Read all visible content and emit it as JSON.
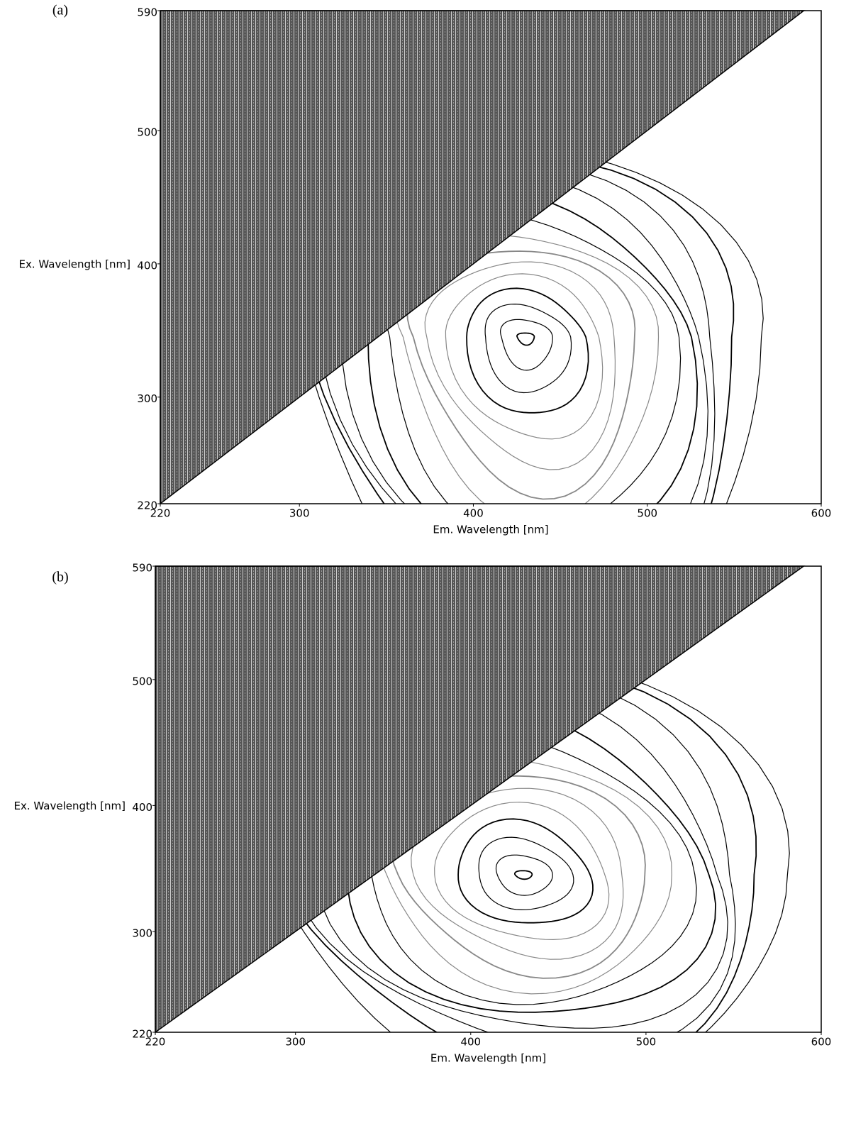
{
  "chart_data": [
    {
      "type": "contour",
      "panel_label": "(a)",
      "xlabel": "Em. Wavelength [nm]",
      "ylabel": "Ex. Wavelength [nm]",
      "xlim": [
        220,
        600
      ],
      "ylim": [
        220,
        590
      ],
      "xticks": [
        220,
        300,
        400,
        500,
        600
      ],
      "yticks": [
        220,
        300,
        400,
        500,
        590
      ]
    },
    {
      "type": "contour",
      "panel_label": "(b)",
      "xlabel": "Em. Wavelength [nm]",
      "ylabel": "Ex. Wavelength [nm]",
      "xlim": [
        220,
        600
      ],
      "ylim": [
        220,
        590
      ],
      "xticks": [
        220,
        300,
        400,
        500,
        600
      ],
      "yticks": [
        220,
        300,
        400,
        500,
        590
      ]
    }
  ]
}
